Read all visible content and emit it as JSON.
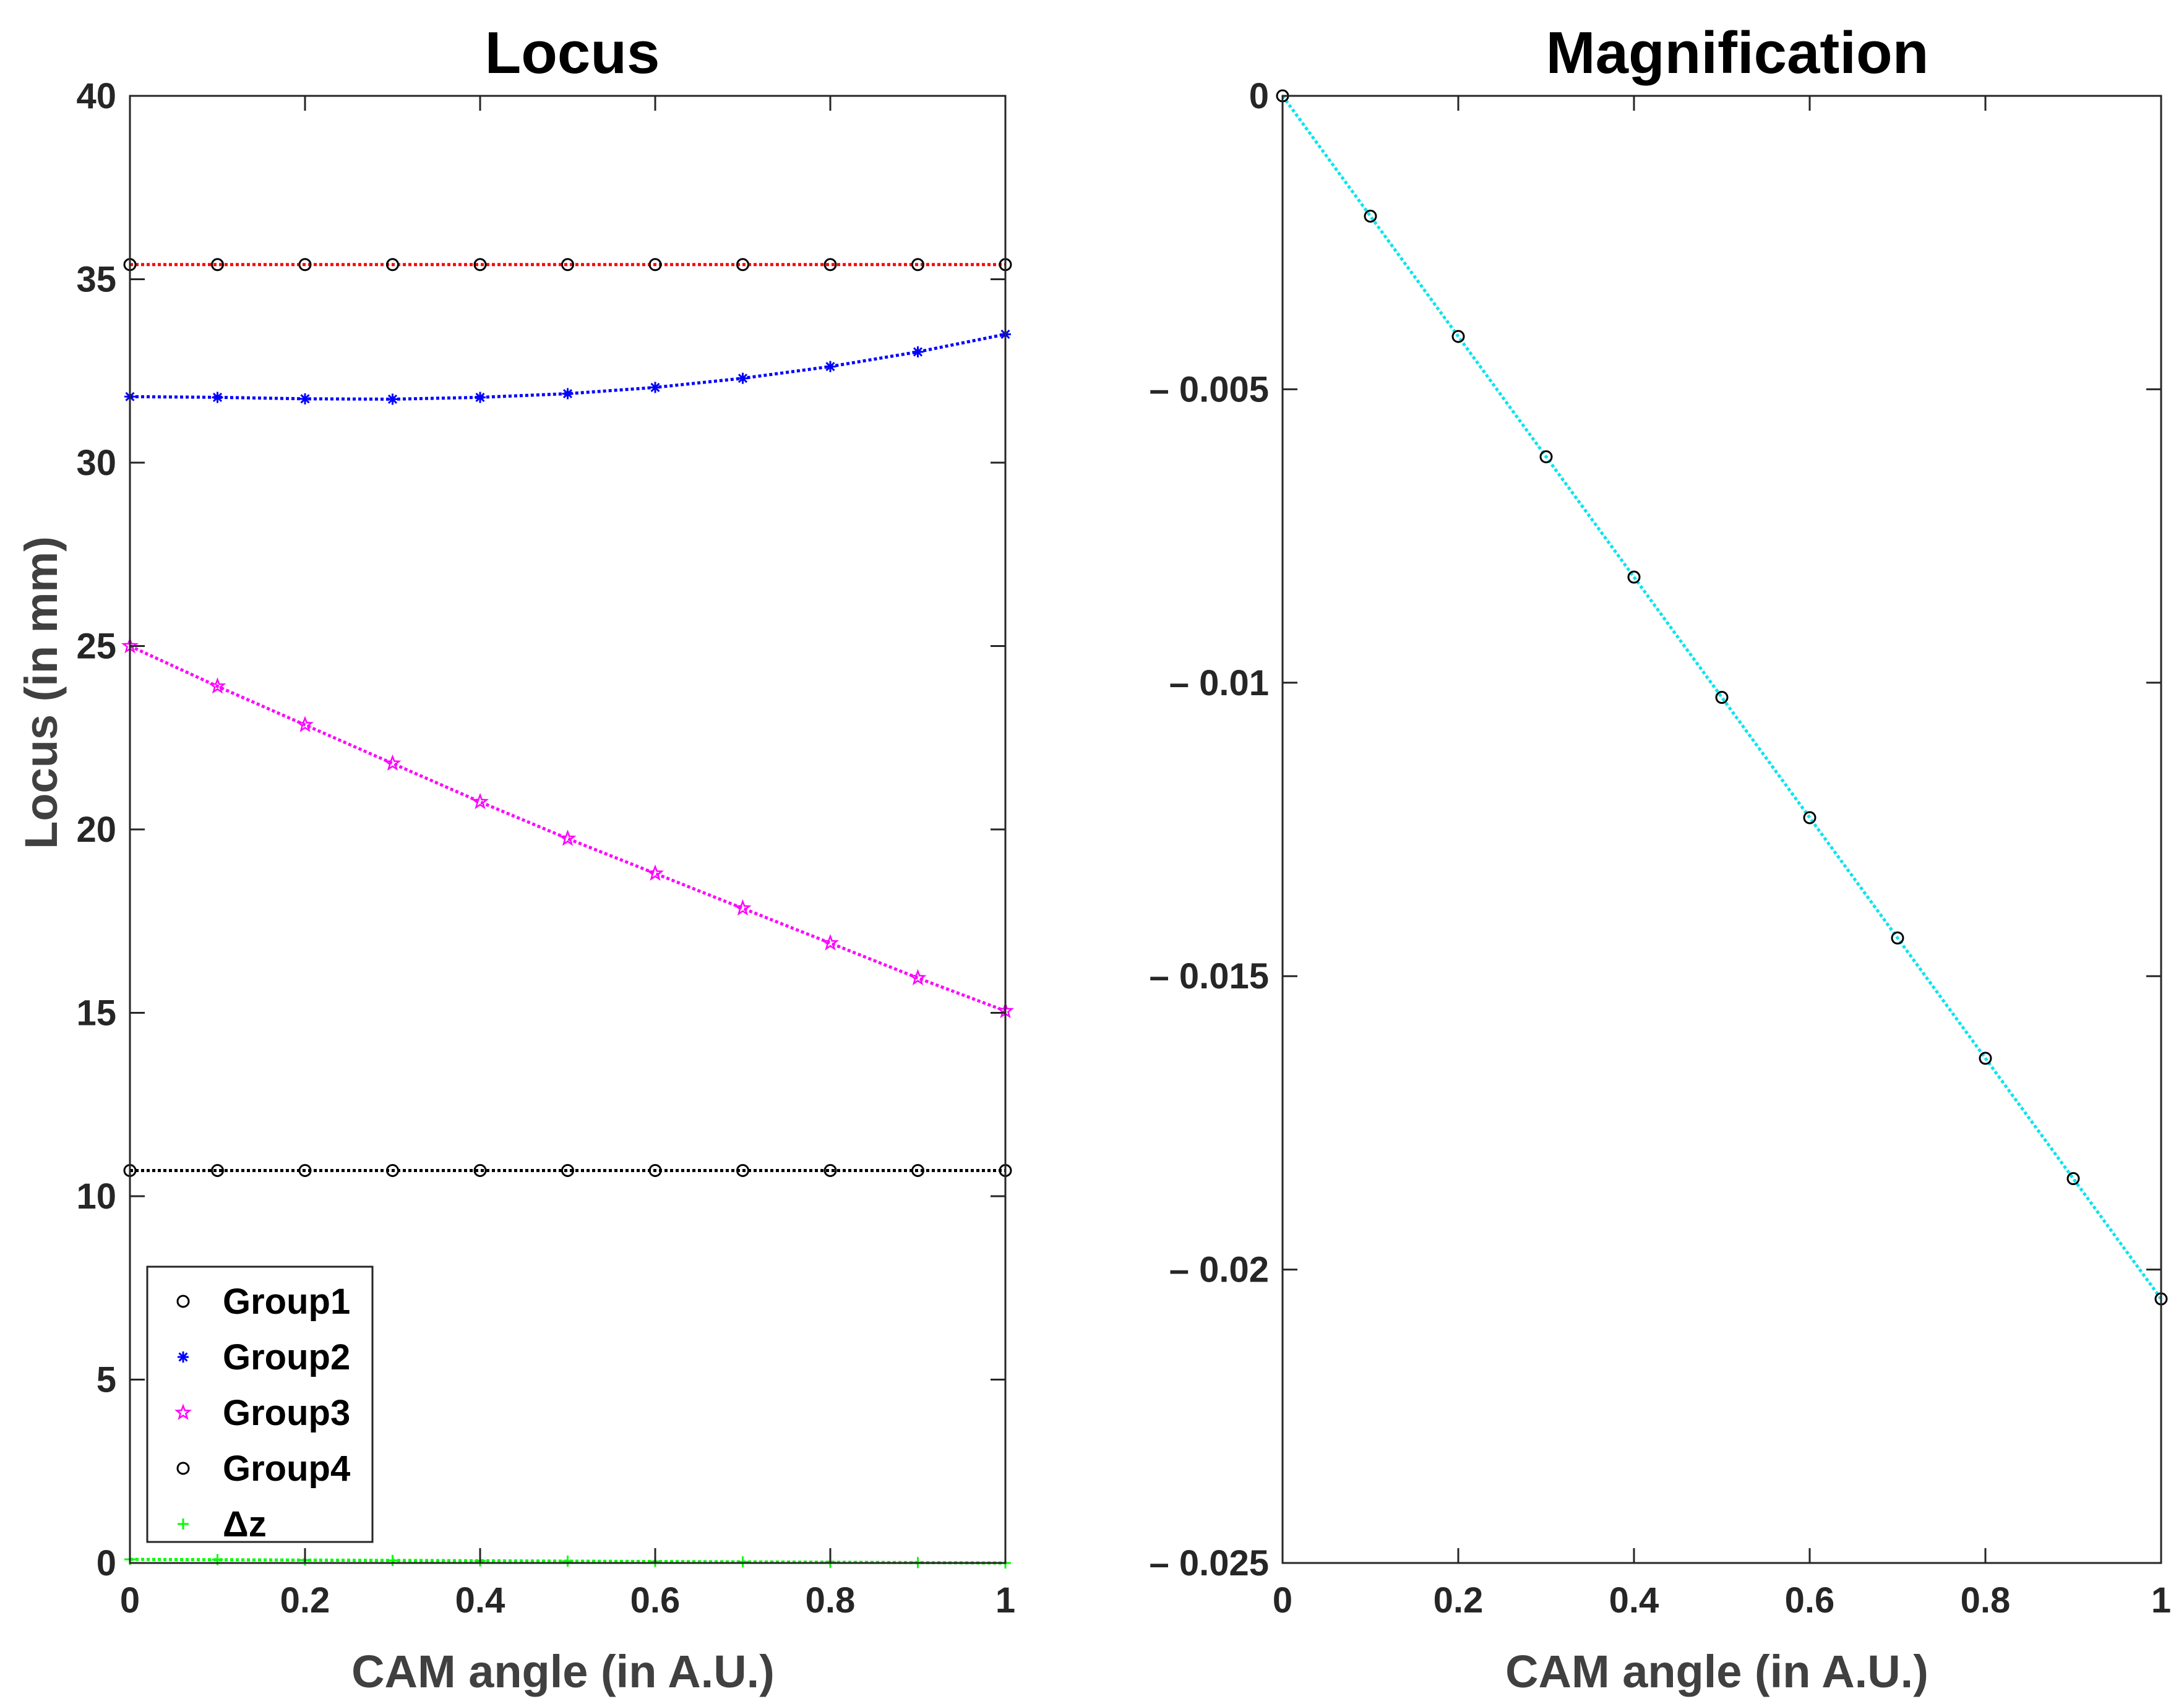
{
  "chart_data": [
    {
      "type": "line",
      "title": "Locus",
      "xlabel": "CAM angle (in A.U.)",
      "ylabel": "Locus (in mm)",
      "xlim": [
        0,
        1
      ],
      "ylim": [
        0,
        40
      ],
      "xticks": [
        "0",
        "0.2",
        "0.4",
        "0.6",
        "0.8",
        "1"
      ],
      "yticks": [
        "0",
        "5",
        "10",
        "15",
        "20",
        "25",
        "30",
        "35",
        "40"
      ],
      "grid": false,
      "legend_position": "bottom-left",
      "x": [
        0,
        0.1,
        0.2,
        0.3,
        0.4,
        0.5,
        0.6,
        0.7,
        0.8,
        0.9,
        1.0
      ],
      "series": [
        {
          "name": "Group1",
          "marker": "circle",
          "color": "#000000",
          "line_color": "#ff0000",
          "values": [
            35.4,
            35.4,
            35.4,
            35.4,
            35.4,
            35.4,
            35.4,
            35.4,
            35.4,
            35.4,
            35.4
          ]
        },
        {
          "name": "Group2",
          "marker": "asterisk",
          "color": "#0000ff",
          "line_color": "#0000ff",
          "values": [
            31.8,
            31.78,
            31.74,
            31.73,
            31.78,
            31.88,
            32.05,
            32.3,
            32.62,
            33.02,
            33.5
          ]
        },
        {
          "name": "Group3",
          "marker": "star",
          "color": "#ff00ff",
          "line_color": "#ff00ff",
          "values": [
            25.0,
            23.9,
            22.85,
            21.8,
            20.75,
            19.75,
            18.8,
            17.85,
            16.9,
            15.95,
            15.05
          ]
        },
        {
          "name": "Group4",
          "marker": "circle",
          "color": "#000000",
          "line_color": "#000000",
          "values": [
            10.7,
            10.7,
            10.7,
            10.7,
            10.7,
            10.7,
            10.7,
            10.7,
            10.7,
            10.7,
            10.7
          ]
        },
        {
          "name": "Δz",
          "marker": "plus",
          "color": "#00ff00",
          "line_color": "#00ff00",
          "values": [
            0.1,
            0.09,
            0.08,
            0.07,
            0.06,
            0.05,
            0.04,
            0.03,
            0.02,
            0.01,
            0.0
          ]
        }
      ]
    },
    {
      "type": "line",
      "title": "Magnification",
      "xlabel": "CAM angle (in A.U.)",
      "ylabel": "",
      "xlim": [
        0,
        1
      ],
      "ylim": [
        -0.025,
        0
      ],
      "xticks": [
        "0",
        "0.2",
        "0.4",
        "0.6",
        "0.8",
        "1"
      ],
      "yticks": [
        "0",
        "– 0.005",
        "– 0.01",
        "– 0.015",
        "– 0.02",
        "– 0.025"
      ],
      "grid": false,
      "x": [
        0,
        0.1,
        0.2,
        0.3,
        0.4,
        0.5,
        0.6,
        0.7,
        0.8,
        0.9,
        1.0
      ],
      "series": [
        {
          "name": "Magnification",
          "marker": "circle",
          "color": "#000000",
          "line_color": "#00e5ee",
          "values": [
            0,
            -0.00205,
            -0.0041,
            -0.00615,
            -0.0082,
            -0.01025,
            -0.0123,
            -0.01435,
            -0.0164,
            -0.01845,
            -0.0205
          ]
        }
      ]
    }
  ]
}
